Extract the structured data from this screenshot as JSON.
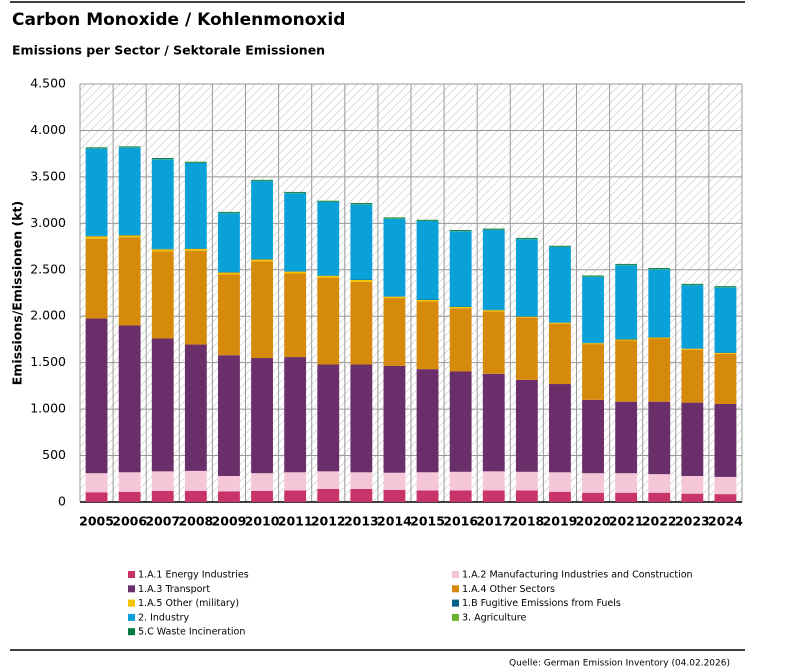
{
  "chart_data": {
    "type": "stacked-bar",
    "title": "Carbon Monoxide / Kohlenmonoxid",
    "subtitle": "Emissions per Sector / Sektorale Emissionen",
    "y_label": "Emissions/Emissionen (kt)",
    "source": "Quelle: German Emission Inventory (04.02.2026)",
    "categories": [
      "2005",
      "2006",
      "2007",
      "2008",
      "2009",
      "2010",
      "2011",
      "2012",
      "2013",
      "2014",
      "2015",
      "2016",
      "2017",
      "2018",
      "2019",
      "2020",
      "2021",
      "2022",
      "2023",
      "2024"
    ],
    "series": [
      {
        "name": "1.A.1 Energy Industries",
        "color": "#c8336a",
        "values": [
          105,
          110,
          120,
          120,
          115,
          120,
          125,
          140,
          140,
          130,
          125,
          125,
          125,
          125,
          110,
          100,
          100,
          100,
          90,
          85
        ]
      },
      {
        "name": "1.A.2 Manufacturing Industries and Construction",
        "color": "#f5c6d8",
        "values": [
          205,
          210,
          210,
          215,
          165,
          190,
          195,
          190,
          180,
          185,
          195,
          200,
          205,
          200,
          210,
          210,
          210,
          200,
          190,
          185
        ]
      },
      {
        "name": "1.A.3 Transport",
        "color": "#6a2e6a",
        "values": [
          1665,
          1580,
          1430,
          1360,
          1300,
          1240,
          1240,
          1150,
          1160,
          1150,
          1110,
          1080,
          1050,
          990,
          950,
          790,
          770,
          780,
          790,
          785
        ]
      },
      {
        "name": "1.A.4 Other Sectors",
        "color": "#d68a0c",
        "values": [
          860,
          950,
          940,
          1010,
          870,
          1040,
          900,
          935,
          890,
          730,
          730,
          680,
          670,
          670,
          650,
          600,
          660,
          680,
          570,
          540
        ]
      },
      {
        "name": "1.A.5 Other (military)",
        "color": "#f5c200",
        "values": [
          25,
          20,
          20,
          20,
          20,
          20,
          20,
          20,
          20,
          15,
          15,
          15,
          15,
          10,
          10,
          10,
          10,
          10,
          10,
          10
        ]
      },
      {
        "name": "1.B Fugitive Emissions from Fuels",
        "color": "#005f85",
        "values": [
          5,
          5,
          5,
          5,
          5,
          5,
          5,
          5,
          5,
          5,
          5,
          5,
          5,
          5,
          5,
          5,
          5,
          5,
          5,
          5
        ]
      },
      {
        "name": "2. Industry",
        "color": "#0aa1d8",
        "values": [
          940,
          940,
          965,
          920,
          635,
          840,
          840,
          790,
          810,
          835,
          845,
          810,
          860,
          830,
          810,
          710,
          795,
          730,
          680,
          700
        ]
      },
      {
        "name": "3. Agriculture",
        "color": "#6ab42d",
        "values": [
          3,
          3,
          3,
          3,
          3,
          3,
          3,
          3,
          3,
          3,
          3,
          3,
          3,
          3,
          3,
          3,
          3,
          3,
          3,
          3
        ]
      },
      {
        "name": "5.C Waste Incineration",
        "color": "#007a3d",
        "values": [
          10,
          10,
          10,
          10,
          10,
          10,
          10,
          10,
          10,
          10,
          10,
          10,
          10,
          10,
          10,
          10,
          10,
          10,
          10,
          10
        ]
      }
    ],
    "ylim": [
      0,
      4500
    ],
    "yticks": [
      0,
      {
        "value": 500,
        "label": "500"
      },
      {
        "value": 1000,
        "label": "1.000"
      },
      {
        "value": 1500,
        "label": "1.500"
      },
      {
        "value": 2000,
        "label": "2.000"
      },
      {
        "value": 2500,
        "label": "2.500"
      },
      {
        "value": 3000,
        "label": "3.000"
      },
      {
        "value": 3500,
        "label": "3.500"
      },
      {
        "value": 4000,
        "label": "4.000"
      },
      {
        "value": 4500,
        "label": "4.500"
      }
    ],
    "grid": true
  }
}
